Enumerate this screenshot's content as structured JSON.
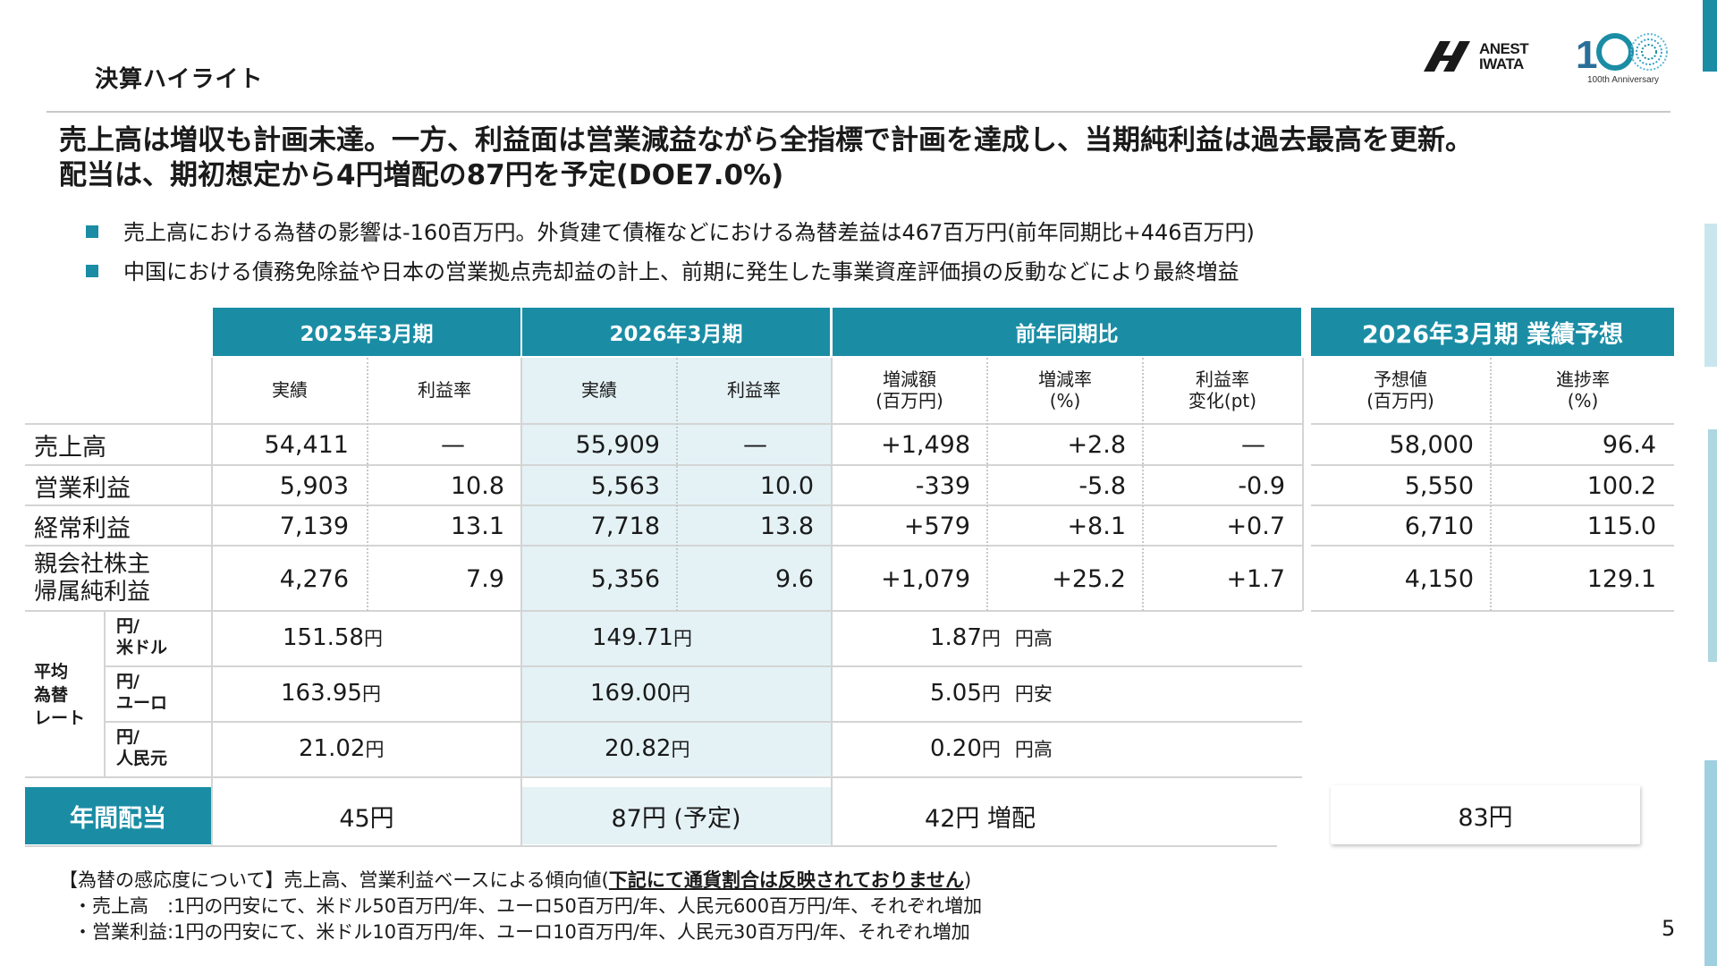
{
  "header": {
    "title": "決算ハイライト",
    "logo_text_1": "ANEST",
    "logo_text_2": "IWATA",
    "anniversary": "100th Anniversary"
  },
  "headline": {
    "line1": "売上高は増収も計画未達。一方、利益面は営業減益ながら全指標で計画を達成し、当期純利益は過去最高を更新。",
    "line2": "配当は、期初想定から4円増配の87円を予定(DOE7.0%)"
  },
  "bullets": [
    "売上高における為替の影響は-160百万円。外貨建て債権などにおける為替差益は467百万円(前年同期比+446百万円)",
    "中国における債務免除益や日本の営業拠点売却益の計上、前期に発生した事業資産評価損の反動などにより最終増益"
  ],
  "table": {
    "groups": [
      "2025年3月期",
      "2026年3月期",
      "前年同期比",
      "2026年3月期 業績予想"
    ],
    "subheaders": {
      "actual": "実績",
      "margin": "利益率",
      "change_amt": "増減額\n(百万円)",
      "change_rate": "増減率\n(%)",
      "margin_change": "利益率\n変化(pt)",
      "forecast": "予想値\n(百万円)",
      "progress": "進捗率\n(%)"
    },
    "rows": [
      {
        "label": "売上高",
        "v": [
          "54,411",
          "—",
          "55,909",
          "—",
          "+1,498",
          "+2.8",
          "—",
          "58,000",
          "96.4"
        ]
      },
      {
        "label": "営業利益",
        "v": [
          "5,903",
          "10.8",
          "5,563",
          "10.0",
          "-339",
          "-5.8",
          "-0.9",
          "5,550",
          "100.2"
        ]
      },
      {
        "label": "経常利益",
        "v": [
          "7,139",
          "13.1",
          "7,718",
          "13.8",
          "+579",
          "+8.1",
          "+0.7",
          "6,710",
          "115.0"
        ]
      },
      {
        "label": "親会社株主\n帰属純利益",
        "v": [
          "4,276",
          "7.9",
          "5,356",
          "9.6",
          "+1,079",
          "+25.2",
          "+1.7",
          "4,150",
          "129.1"
        ]
      }
    ],
    "fx": {
      "label": "平均\n為替\nレート",
      "unit": "円",
      "rows": [
        {
          "pair": "円/\n米ドル",
          "prev": "151.58",
          "curr": "149.71",
          "diff": "1.87",
          "dir": "円高"
        },
        {
          "pair": "円/\nユーロ",
          "prev": "163.95",
          "curr": "169.00",
          "diff": "5.05",
          "dir": "円安"
        },
        {
          "pair": "円/\n人民元",
          "prev": "21.02",
          "curr": "20.82",
          "diff": "0.20",
          "dir": "円高"
        }
      ]
    },
    "dividend": {
      "label": "年間配当",
      "prev": "45円",
      "curr": "87円 (予定)",
      "diff": "42円 増配",
      "forecast": "83円"
    }
  },
  "notes": {
    "line1_a": "【為替の感応度について】売上高、営業利益ベースによる傾向値(",
    "line1_b": "下記にて通貨割合は反映されておりません",
    "line1_c": ")",
    "line2": "・売上高　:1円の円安にて、米ドル50百万円/年、ユーロ50百万円/年、人民元600百万円/年、それぞれ増加",
    "line3": "・営業利益:1円の円安にて、米ドル10百万円/年、ユーロ10百万円/年、人民元30百万円/年、それぞれ増加"
  },
  "page_number": "5",
  "colors": {
    "accent": "#1a8da5",
    "shade": "#e4f2f6"
  }
}
